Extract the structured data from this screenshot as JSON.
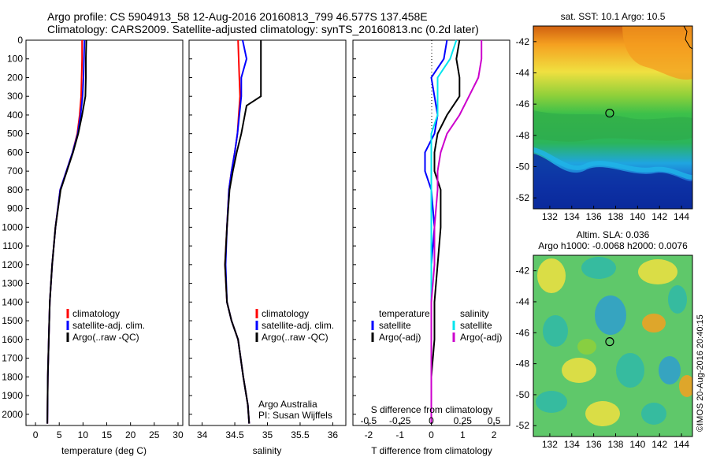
{
  "header": {
    "line1": "Argo profile: CS 5904913_58 12-Aug-2016 20160813_799 46.577S 137.458E",
    "line2": "Climatology: CARS2009. Satellite-adjusted climatology: synTS_20160813.nc (0.2d later)"
  },
  "colors": {
    "climatology": "#ff0000",
    "satellite": "#0000ff",
    "argo": "#000000",
    "argo_adj": "#cc00cc",
    "sal_satellite": "#00e5ee"
  },
  "chart_data": [
    {
      "type": "line",
      "xlabel": "temperature (deg C)",
      "ylabel": "",
      "xlim": [
        -2,
        31
      ],
      "ylim": [
        2060,
        0
      ],
      "xticks": [
        0,
        5,
        10,
        15,
        20,
        25,
        30
      ],
      "yticks": [
        0,
        100,
        200,
        300,
        400,
        500,
        600,
        700,
        800,
        900,
        1000,
        1100,
        1200,
        1300,
        1400,
        1500,
        1600,
        1700,
        1800,
        1900,
        2000
      ],
      "legend": [
        "climatology",
        "satellite-adj. clim.",
        "Argo(..raw -QC)"
      ],
      "legend_placement": "lower-right",
      "series": [
        {
          "name": "climatology",
          "color": "#ff0000",
          "x": [
            9.8,
            9.8,
            9.7,
            9.6,
            9.3,
            8.8,
            7.8,
            6.5,
            5.2,
            4.2,
            3.5,
            3.0,
            2.8,
            2.6,
            2.5
          ],
          "y": [
            0,
            100,
            200,
            300,
            400,
            500,
            600,
            700,
            800,
            1000,
            1200,
            1400,
            1600,
            1800,
            2050
          ]
        },
        {
          "name": "satellite-adj. clim.",
          "color": "#0000ff",
          "x": [
            10.3,
            10.2,
            10.1,
            9.9,
            9.5,
            8.9,
            7.8,
            6.5,
            5.2,
            4.2,
            3.5,
            3.0,
            2.8,
            2.6,
            2.5
          ],
          "y": [
            0,
            100,
            200,
            300,
            400,
            500,
            600,
            700,
            800,
            1000,
            1200,
            1400,
            1600,
            1800,
            2050
          ]
        },
        {
          "name": "Argo(..raw -QC)",
          "color": "#000000",
          "x": [
            10.7,
            10.6,
            10.6,
            10.5,
            9.8,
            9.0,
            7.9,
            6.6,
            5.3,
            4.2,
            3.5,
            3.0,
            2.8,
            2.6,
            2.5
          ],
          "y": [
            0,
            100,
            200,
            300,
            400,
            500,
            600,
            700,
            800,
            1000,
            1200,
            1400,
            1600,
            1800,
            2050
          ]
        }
      ]
    },
    {
      "type": "line",
      "xlabel": "salinity",
      "ylabel": "",
      "xlim": [
        33.8,
        36.2
      ],
      "ylim": [
        2060,
        0
      ],
      "xticks": [
        34,
        34.5,
        35,
        35.5,
        36
      ],
      "xticklabels": [
        "34",
        "34.5",
        "35",
        "35.5",
        "36"
      ],
      "legend": [
        "climatology",
        "satellite-adj. clim.",
        "Argo(..raw -QC)"
      ],
      "legend_placement": "lower-right",
      "annotation": [
        "Argo Australia",
        "PI: Susan Wijffels"
      ],
      "series": [
        {
          "name": "climatology",
          "color": "#ff0000",
          "x": [
            34.55,
            34.56,
            34.57,
            34.58,
            34.56,
            34.54,
            34.5,
            34.45,
            34.41,
            34.38,
            34.35,
            34.38,
            34.45,
            34.55,
            34.63,
            34.7,
            34.72
          ],
          "y": [
            0,
            100,
            200,
            300,
            400,
            500,
            600,
            700,
            800,
            1000,
            1200,
            1400,
            1500,
            1600,
            1800,
            1950,
            2050
          ]
        },
        {
          "name": "satellite-adj. clim.",
          "color": "#0000ff",
          "x": [
            34.62,
            34.68,
            34.6,
            34.6,
            34.57,
            34.54,
            34.5,
            34.45,
            34.41,
            34.38,
            34.36,
            34.38,
            34.45,
            34.55,
            34.63,
            34.7,
            34.72
          ],
          "y": [
            0,
            100,
            200,
            300,
            400,
            500,
            600,
            700,
            800,
            1000,
            1200,
            1400,
            1500,
            1600,
            1800,
            1950,
            2050
          ]
        },
        {
          "name": "Argo(..raw -QC)",
          "color": "#000000",
          "x": [
            34.9,
            34.9,
            34.9,
            34.9,
            34.68,
            34.6,
            34.53,
            34.47,
            34.42,
            34.38,
            34.35,
            34.38,
            34.45,
            34.55,
            34.63,
            34.7,
            34.72
          ],
          "y": [
            0,
            100,
            200,
            300,
            350,
            500,
            600,
            700,
            800,
            1000,
            1200,
            1400,
            1500,
            1600,
            1800,
            1950,
            2050
          ]
        }
      ]
    },
    {
      "type": "line",
      "xlabel": "T difference from climatology",
      "ylabel": "",
      "xlim": [
        -2.5,
        2.5
      ],
      "ylim": [
        2060,
        0
      ],
      "xticks": [
        -2,
        -1,
        0,
        1,
        2
      ],
      "top_xlabel": "S difference from climatology",
      "top_xticklabels": [
        "-0.5",
        "-0.25",
        "0",
        "0.25",
        "0.5"
      ],
      "legend": [
        "temperature",
        "satellite",
        "Argo(-adj)",
        "salinity",
        "satellite",
        "Argo(-adj)"
      ],
      "legend_placement": "lower-center",
      "series": [
        {
          "name": "satellite",
          "color": "#0000ff",
          "x": [
            0.5,
            0.4,
            0,
            0.1,
            0.2,
            0.1,
            -0.2,
            -0.2,
            0,
            0.1,
            0,
            0,
            0,
            0,
            0
          ],
          "y": [
            0,
            100,
            200,
            300,
            400,
            500,
            600,
            700,
            800,
            1000,
            1200,
            1400,
            1600,
            1800,
            2050
          ]
        },
        {
          "name": "Argo(-adj)",
          "color": "#000000",
          "x": [
            0.9,
            0.8,
            0.9,
            0.9,
            0.5,
            0.2,
            0.1,
            0.1,
            0.3,
            0.3,
            0.2,
            0.1,
            0.1,
            0,
            0
          ],
          "y": [
            0,
            100,
            200,
            300,
            400,
            500,
            600,
            700,
            800,
            1000,
            1200,
            1400,
            1600,
            1800,
            2050
          ]
        },
        {
          "name": "satellite",
          "color": "#00e5ee",
          "x": [
            0.8,
            0.6,
            0.2,
            0.2,
            0.2,
            0,
            0,
            0,
            0,
            0,
            0,
            0,
            0,
            0,
            0
          ],
          "y": [
            0,
            100,
            200,
            300,
            400,
            500,
            600,
            700,
            800,
            1000,
            1200,
            1400,
            1600,
            1800,
            2050
          ]
        },
        {
          "name": "Argo(-adj)",
          "color": "#cc00cc",
          "x": [
            1.6,
            1.6,
            1.5,
            1.2,
            0.9,
            0.5,
            0.3,
            0.2,
            0.2,
            0.1,
            0.1,
            0,
            0,
            0,
            0
          ],
          "y": [
            0,
            100,
            200,
            300,
            400,
            500,
            600,
            700,
            800,
            1000,
            1200,
            1400,
            1600,
            1800,
            2050
          ]
        }
      ]
    },
    {
      "type": "heatmap",
      "title": "sat. SST: 10.1  Argo: 10.5",
      "xlim": [
        130.5,
        145
      ],
      "ylim": [
        -52.7,
        -41
      ],
      "xticks": [
        132,
        134,
        136,
        138,
        140,
        142,
        144
      ],
      "yticks": [
        -42,
        -44,
        -46,
        -48,
        -50,
        -52
      ],
      "marker": {
        "lon": 137.458,
        "lat": -46.577
      }
    },
    {
      "type": "heatmap",
      "title_lines": [
        "Altim. SLA: 0.036",
        "Argo h1000: -0.0068 h2000: 0.0076"
      ],
      "xlim": [
        130.5,
        145
      ],
      "ylim": [
        -52.7,
        -41
      ],
      "xticks": [
        132,
        134,
        136,
        138,
        140,
        142,
        144
      ],
      "yticks": [
        -42,
        -44,
        -46,
        -48,
        -50,
        -52
      ],
      "marker": {
        "lon": 137.458,
        "lat": -46.577
      }
    }
  ],
  "footer": {
    "credit": "©IMOS 20-Aug-2016 20:40:15"
  }
}
